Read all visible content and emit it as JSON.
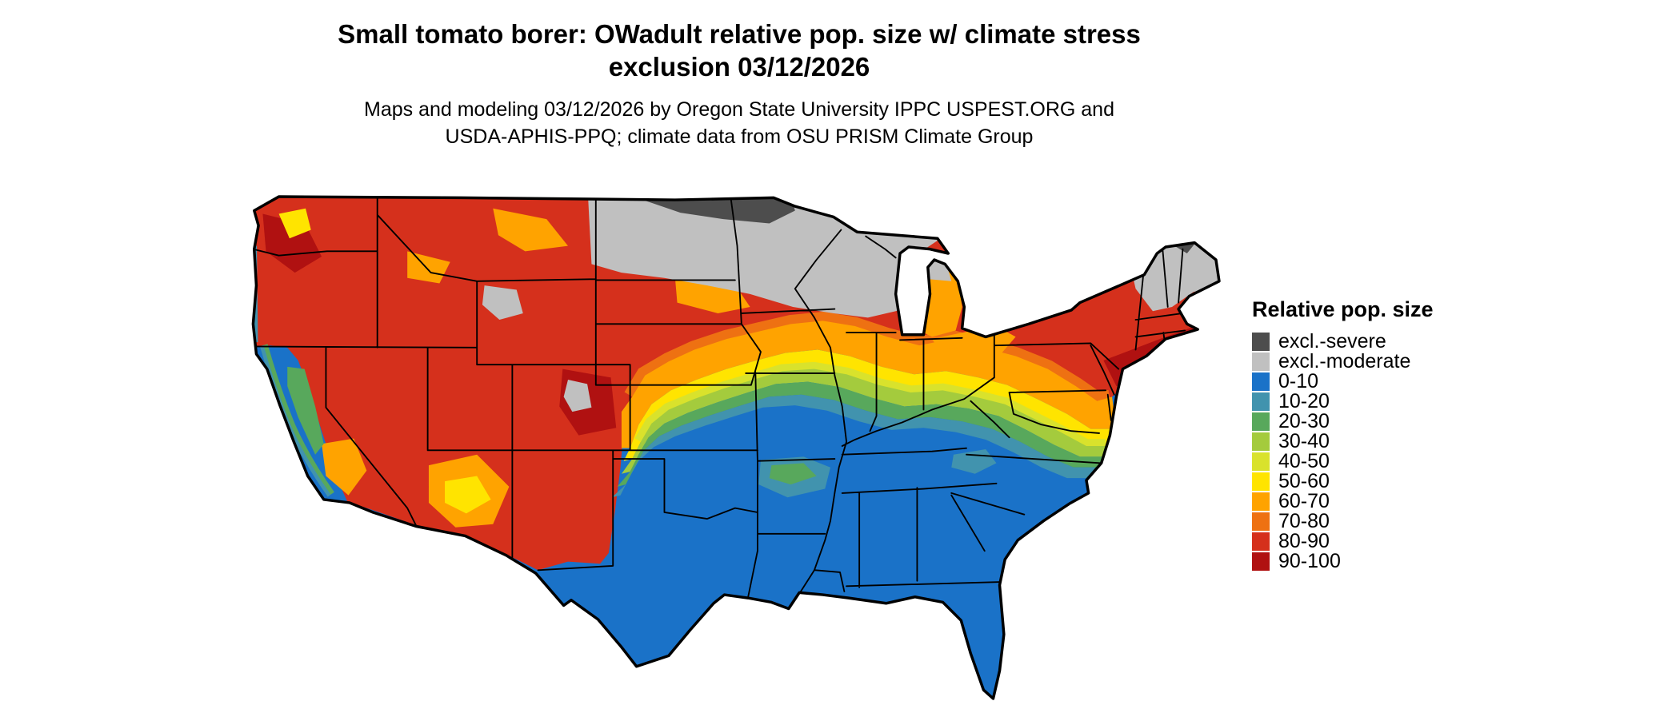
{
  "title": {
    "line1": "Small tomato borer: OWadult relative pop. size w/ climate stress",
    "line2": "exclusion 03/12/2026"
  },
  "subtitle": {
    "line1": "Maps and modeling 03/12/2026 by Oregon State University IPPC USPEST.ORG and",
    "line2": "USDA-APHIS-PPQ; climate data from OSU PRISM Climate Group"
  },
  "map": {
    "type": "choropleth",
    "region": "Contiguous United States",
    "variable": "Relative pop. size"
  },
  "legend": {
    "title": "Relative pop. size",
    "items": [
      {
        "key": "sev",
        "label": "excl.-severe",
        "color": "#4d4d4d"
      },
      {
        "key": "mod",
        "label": "excl.-moderate",
        "color": "#c0c0c0"
      },
      {
        "key": "v0",
        "label": "0-10",
        "color": "#1a72c8"
      },
      {
        "key": "v10",
        "label": "10-20",
        "color": "#4193ae"
      },
      {
        "key": "v20",
        "label": "20-30",
        "color": "#58a85c"
      },
      {
        "key": "v30",
        "label": "30-40",
        "color": "#a4cb3d"
      },
      {
        "key": "v40",
        "label": "40-50",
        "color": "#d9e22c"
      },
      {
        "key": "v50",
        "label": "50-60",
        "color": "#ffe400"
      },
      {
        "key": "v60",
        "label": "60-70",
        "color": "#ffa300"
      },
      {
        "key": "v70",
        "label": "70-80",
        "color": "#ee7112"
      },
      {
        "key": "v80",
        "label": "80-90",
        "color": "#d5301c"
      },
      {
        "key": "v90",
        "label": "90-100",
        "color": "#b01111"
      }
    ]
  }
}
